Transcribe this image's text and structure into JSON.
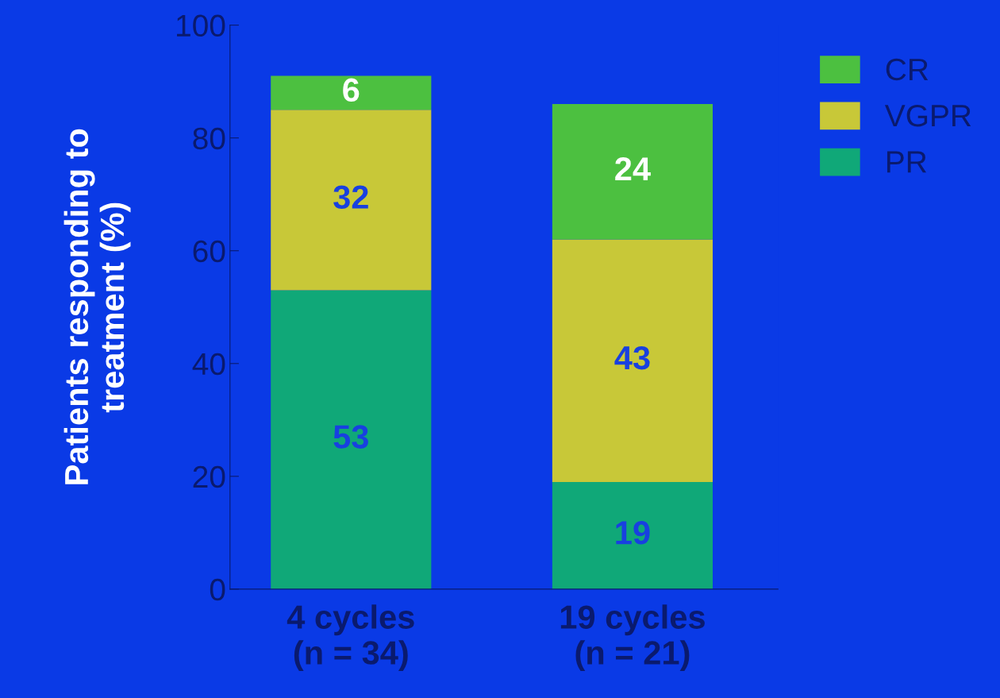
{
  "chart_data": {
    "type": "bar",
    "stacked": true,
    "ylabel": "Patients responding to\ntreatment (%)",
    "categories": [
      "4 cycles\n(n = 34)",
      "19 cycles\n(n = 21)"
    ],
    "series": [
      {
        "name": "PR",
        "color": "#10a878",
        "values": [
          53,
          19
        ]
      },
      {
        "name": "VGPR",
        "color": "#c8c838",
        "values": [
          32,
          43
        ]
      },
      {
        "name": "CR",
        "color": "#4cc040",
        "values": [
          6,
          24
        ]
      }
    ],
    "ylim": [
      0,
      100
    ],
    "yticks": [
      0,
      20,
      40,
      60,
      80,
      100
    ],
    "grid": false,
    "legend": "top right",
    "data_labels": true
  }
}
